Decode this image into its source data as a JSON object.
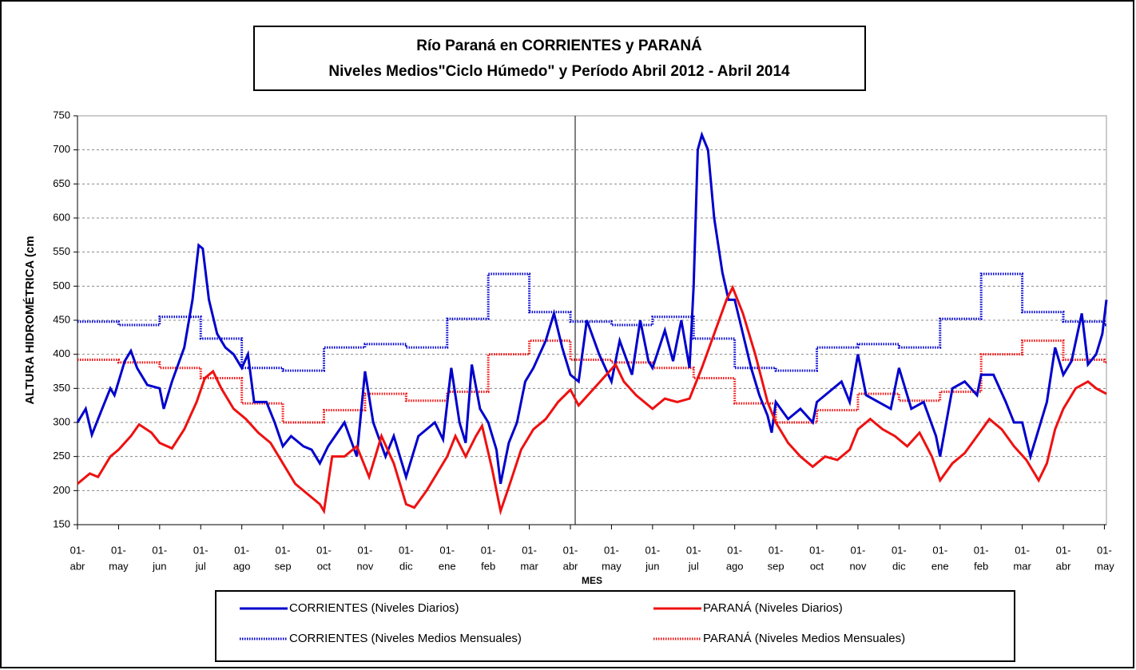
{
  "chart_data": {
    "type": "line",
    "title": [
      "Río Paraná en CORRIENTES y PARANÁ",
      "Niveles Medios\"Ciclo Húmedo\" y Período Abril 2012 - Abril 2014"
    ],
    "y_label": "ALTURA HIDROMÉTRICA (cm",
    "x_label": "MES",
    "xlim": [
      0,
      25.05
    ],
    "xticks": [
      {
        "value": 0,
        "label": [
          "01-",
          "abr"
        ]
      },
      {
        "value": 1,
        "label": [
          "01-",
          "may"
        ]
      },
      {
        "value": 2,
        "label": [
          "01-",
          "jun"
        ]
      },
      {
        "value": 3,
        "label": [
          "01-",
          "jul"
        ]
      },
      {
        "value": 4,
        "label": [
          "01-",
          "ago"
        ]
      },
      {
        "value": 5,
        "label": [
          "01-",
          "sep"
        ]
      },
      {
        "value": 6,
        "label": [
          "01-",
          "oct"
        ]
      },
      {
        "value": 7,
        "label": [
          "01-",
          "nov"
        ]
      },
      {
        "value": 8,
        "label": [
          "01-",
          "dic"
        ]
      },
      {
        "value": 9,
        "label": [
          "01-",
          "ene"
        ]
      },
      {
        "value": 10,
        "label": [
          "01-",
          "feb"
        ]
      },
      {
        "value": 11,
        "label": [
          "01-",
          "mar"
        ]
      },
      {
        "value": 12,
        "label": [
          "01-",
          "abr"
        ]
      },
      {
        "value": 13,
        "label": [
          "01-",
          "may"
        ]
      },
      {
        "value": 14,
        "label": [
          "01-",
          "jun"
        ]
      },
      {
        "value": 15,
        "label": [
          "01-",
          "jul"
        ]
      },
      {
        "value": 16,
        "label": [
          "01-",
          "ago"
        ]
      },
      {
        "value": 17,
        "label": [
          "01-",
          "sep"
        ]
      },
      {
        "value": 18,
        "label": [
          "01-",
          "oct"
        ]
      },
      {
        "value": 19,
        "label": [
          "01-",
          "nov"
        ]
      },
      {
        "value": 20,
        "label": [
          "01-",
          "dic"
        ]
      },
      {
        "value": 21,
        "label": [
          "01-",
          "ene"
        ]
      },
      {
        "value": 22,
        "label": [
          "01-",
          "feb"
        ]
      },
      {
        "value": 23,
        "label": [
          "01-",
          "mar"
        ]
      },
      {
        "value": 24,
        "label": [
          "01-",
          "abr"
        ]
      },
      {
        "value": 25,
        "label": [
          "01-",
          "may"
        ]
      }
    ],
    "ylim": [
      150,
      750
    ],
    "yticks": [
      150,
      200,
      250,
      300,
      350,
      400,
      450,
      500,
      550,
      600,
      650,
      700,
      750
    ],
    "grid": true,
    "series": [
      {
        "name": "CORRIENTES (Niveles Diarios)",
        "color": "#0000cc",
        "line_style": "solid",
        "step": false,
        "x": [
          0,
          0.2,
          0.35,
          0.6,
          0.8,
          0.9,
          1.0,
          1.15,
          1.3,
          1.45,
          1.7,
          2.0,
          2.1,
          2.3,
          2.6,
          2.8,
          2.95,
          3.05,
          3.2,
          3.4,
          3.6,
          3.8,
          4.0,
          4.15,
          4.3,
          4.6,
          4.8,
          5.0,
          5.2,
          5.5,
          5.7,
          5.9,
          6.1,
          6.5,
          6.8,
          7.0,
          7.2,
          7.5,
          7.7,
          8.0,
          8.3,
          8.7,
          8.9,
          9.1,
          9.3,
          9.45,
          9.6,
          9.8,
          10.0,
          10.2,
          10.3,
          10.5,
          10.7,
          10.9,
          11.1,
          11.4,
          11.6,
          11.8,
          12.0,
          12.2,
          12.4,
          12.7,
          13.0,
          13.2,
          13.5,
          13.7,
          13.9,
          14.0,
          14.3,
          14.5,
          14.7,
          14.9,
          15.0,
          15.1,
          15.2,
          15.35,
          15.5,
          15.7,
          15.85,
          16.0,
          16.2,
          16.4,
          16.6,
          16.8,
          16.9,
          17.0,
          17.3,
          17.6,
          17.9,
          18.0,
          18.3,
          18.6,
          18.8,
          19.0,
          19.2,
          19.5,
          19.8,
          20.0,
          20.3,
          20.6,
          20.9,
          21.0,
          21.3,
          21.6,
          21.9,
          22.0,
          22.3,
          22.6,
          22.8,
          23.0,
          23.2,
          23.4,
          23.6,
          23.8,
          24.0,
          24.2,
          24.45,
          24.6,
          24.8,
          24.95,
          25.05
        ],
        "values": [
          300,
          320,
          282,
          320,
          350,
          340,
          360,
          390,
          405,
          380,
          355,
          350,
          320,
          360,
          410,
          480,
          560,
          555,
          480,
          430,
          410,
          400,
          380,
          400,
          330,
          330,
          300,
          265,
          280,
          265,
          260,
          240,
          265,
          300,
          250,
          375,
          300,
          250,
          280,
          220,
          280,
          300,
          275,
          380,
          300,
          270,
          385,
          320,
          300,
          260,
          210,
          270,
          300,
          360,
          380,
          420,
          460,
          410,
          370,
          360,
          450,
          400,
          360,
          420,
          370,
          450,
          390,
          380,
          435,
          390,
          450,
          380,
          500,
          700,
          722,
          700,
          600,
          520,
          480,
          480,
          430,
          380,
          340,
          310,
          285,
          330,
          305,
          320,
          300,
          330,
          345,
          360,
          330,
          400,
          340,
          330,
          320,
          380,
          320,
          330,
          280,
          250,
          350,
          360,
          340,
          370,
          370,
          330,
          300,
          300,
          250,
          290,
          330,
          410,
          370,
          390,
          460,
          385,
          400,
          430,
          480
        ]
      },
      {
        "name": "PARANÁ (Niveles Diarios)",
        "color": "#ee1111",
        "line_style": "solid",
        "step": false,
        "x": [
          0,
          0.3,
          0.5,
          0.8,
          1.0,
          1.3,
          1.5,
          1.8,
          2.0,
          2.3,
          2.6,
          2.9,
          3.1,
          3.3,
          3.5,
          3.8,
          4.1,
          4.4,
          4.7,
          5.0,
          5.3,
          5.6,
          5.9,
          6.0,
          6.2,
          6.5,
          6.8,
          7.1,
          7.4,
          7.7,
          8.0,
          8.2,
          8.5,
          8.8,
          9.0,
          9.2,
          9.45,
          9.7,
          9.85,
          10.1,
          10.3,
          10.5,
          10.8,
          11.1,
          11.4,
          11.7,
          12.0,
          12.2,
          12.5,
          12.8,
          13.1,
          13.3,
          13.6,
          14.0,
          14.3,
          14.6,
          14.9,
          15.2,
          15.5,
          15.8,
          15.95,
          16.2,
          16.5,
          16.8,
          17.0,
          17.3,
          17.6,
          17.9,
          18.2,
          18.5,
          18.8,
          19.0,
          19.3,
          19.6,
          19.9,
          20.2,
          20.5,
          20.8,
          21.0,
          21.3,
          21.6,
          21.9,
          22.2,
          22.5,
          22.8,
          23.1,
          23.4,
          23.6,
          23.8,
          24.0,
          24.3,
          24.6,
          24.8,
          25.05
        ],
        "values": [
          210,
          225,
          220,
          250,
          260,
          280,
          297,
          285,
          270,
          262,
          290,
          330,
          365,
          375,
          350,
          320,
          305,
          285,
          270,
          240,
          210,
          195,
          180,
          170,
          250,
          250,
          265,
          220,
          280,
          240,
          180,
          175,
          200,
          230,
          250,
          280,
          250,
          280,
          295,
          230,
          170,
          205,
          260,
          290,
          305,
          330,
          348,
          325,
          345,
          365,
          385,
          360,
          340,
          320,
          335,
          330,
          335,
          380,
          430,
          480,
          498,
          460,
          400,
          330,
          300,
          270,
          250,
          235,
          250,
          245,
          260,
          290,
          305,
          290,
          280,
          265,
          285,
          250,
          215,
          240,
          255,
          280,
          305,
          290,
          265,
          245,
          215,
          240,
          290,
          320,
          350,
          360,
          350,
          342
        ]
      },
      {
        "name": "CORRIENTES (Niveles Medios Mensuales)",
        "color": "#0000cc",
        "line_style": "dotted",
        "step": true,
        "x": [
          0,
          1,
          2,
          3,
          4,
          5,
          6,
          7,
          8,
          9,
          10,
          11,
          12,
          13,
          14,
          15,
          16,
          17,
          18,
          19,
          20,
          21,
          22,
          23,
          24,
          25
        ],
        "values": [
          448,
          443,
          455,
          423,
          380,
          376,
          410,
          415,
          410,
          452,
          518,
          462,
          448,
          443,
          455,
          423,
          380,
          376,
          410,
          415,
          410,
          452,
          518,
          462,
          448,
          443
        ]
      },
      {
        "name": "PARANÁ (Niveles Medios Mensuales)",
        "color": "#ee1111",
        "line_style": "dotted",
        "step": true,
        "x": [
          0,
          1,
          2,
          3,
          4,
          5,
          6,
          7,
          8,
          9,
          10,
          11,
          12,
          13,
          14,
          15,
          16,
          17,
          18,
          19,
          20,
          21,
          22,
          23,
          24,
          25
        ],
        "values": [
          392,
          388,
          380,
          365,
          328,
          300,
          318,
          342,
          332,
          345,
          400,
          420,
          392,
          388,
          380,
          365,
          328,
          300,
          318,
          342,
          332,
          345,
          400,
          420,
          392,
          388
        ]
      }
    ]
  }
}
